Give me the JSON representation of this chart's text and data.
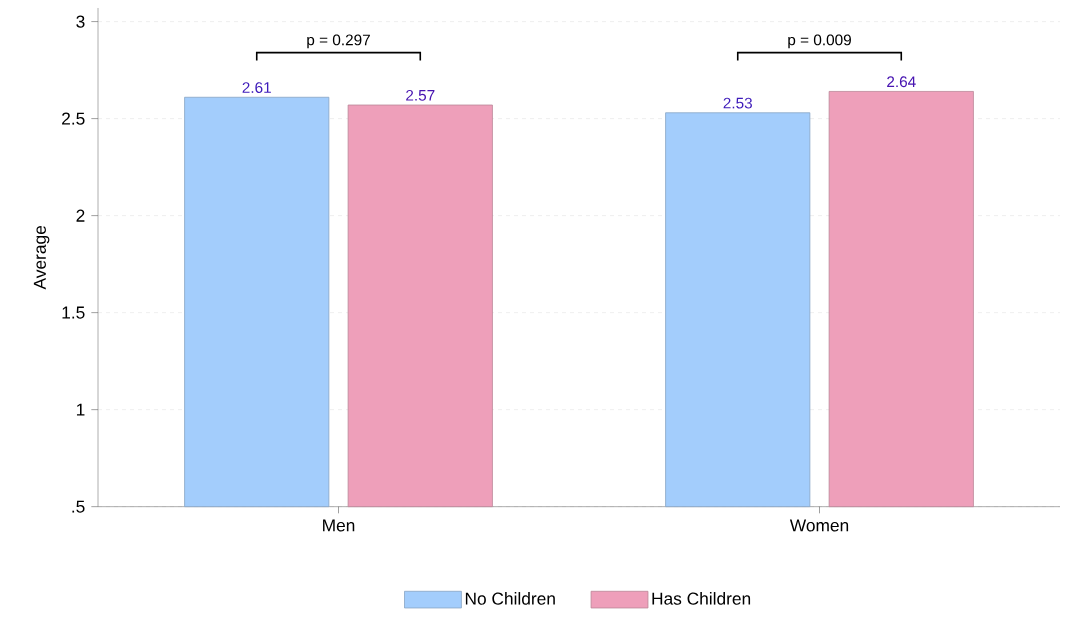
{
  "chart_data": {
    "type": "bar",
    "ylabel": "Average",
    "categories": [
      "Men",
      "Women"
    ],
    "series": [
      {
        "name": "No Children",
        "color": "#a3cdfc",
        "values": [
          2.61,
          2.53
        ]
      },
      {
        "name": "Has Children",
        "color": "#ee9fba",
        "values": [
          2.57,
          2.64
        ]
      }
    ],
    "ylim": [
      0.5,
      3.07
    ],
    "yticks": [
      {
        "value": 0.5,
        "label": ".5"
      },
      1,
      1.5,
      2,
      2.5,
      3
    ],
    "grid": "y",
    "legend": "bottom",
    "data_labels": true,
    "annotations": [
      "p = 0.297",
      "p = 0.009"
    ]
  }
}
